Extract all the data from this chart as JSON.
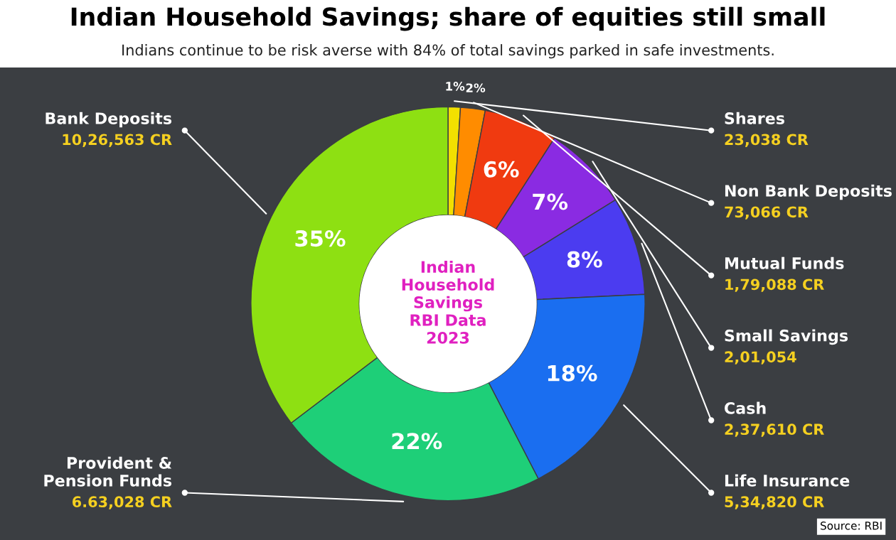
{
  "chart_data": {
    "type": "donut",
    "title": "Indian Household Savings; share of equities still small",
    "subtitle": "Indians continue to be risk averse with 84% of total savings parked in safe investments.",
    "categories": [
      "Shares",
      "Non Bank Deposits",
      "Mutual Funds",
      "Small Savings",
      "Cash",
      "Life Insurance",
      "Provident &\nPension Funds",
      "Bank Deposits"
    ],
    "values": [
      1,
      2,
      6,
      7,
      8,
      18,
      22,
      35
    ],
    "value_labels": [
      "1%",
      "2%",
      "6%",
      "7%",
      "8%",
      "18%",
      "22%",
      "35%"
    ],
    "colors": [
      "#f2e000",
      "#ff8c00",
      "#f03a10",
      "#8a2be2",
      "#4b3cf0",
      "#1a6ef0",
      "#1ecf78",
      "#8ee012"
    ],
    "annotations": [
      "23,038 CR",
      "73,066 CR",
      "1,79,088 CR",
      "2,01,054",
      "2,37,610 CR",
      "5,34,820 CR",
      "6.63,028 CR",
      "10,26,563 CR",
      "Indian\nHousehold\nSavings\nRBI Data\n2023",
      "Source: RBI"
    ]
  }
}
